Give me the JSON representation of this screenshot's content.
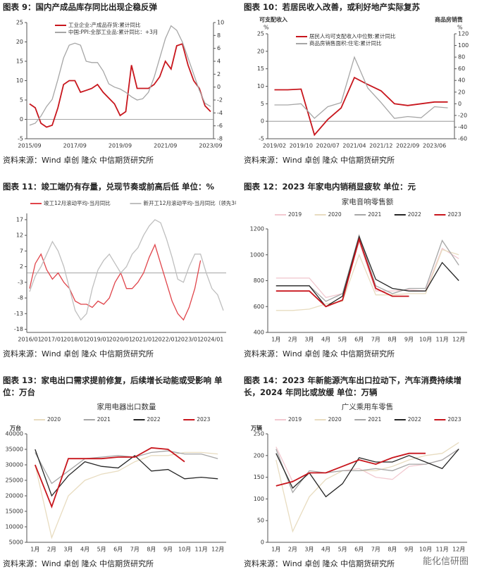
{
  "chart_data": [
    {
      "type": "line",
      "caption": "图表 9：国内产成品库存同比出现企稳反弹",
      "legend": "top-left",
      "categories": [
        "2015/09",
        null,
        null,
        null,
        null,
        null,
        null,
        null,
        "2017/09",
        null,
        null,
        null,
        null,
        null,
        null,
        null,
        "2019/09",
        null,
        null,
        null,
        null,
        null,
        null,
        null,
        "2021/09",
        null,
        null,
        null,
        null,
        null,
        null,
        null,
        "2023/09"
      ],
      "ylim": [
        -5,
        25
      ],
      "yticks": [
        -5,
        0,
        5,
        10,
        15,
        20,
        25
      ],
      "y2lim": [
        -8,
        10
      ],
      "y2ticks": [
        -8,
        -6,
        -4,
        -2,
        0,
        2,
        4,
        6,
        8,
        10
      ],
      "series": [
        {
          "name": "工业企业:产成品存货:累计同比",
          "color": "#c8161d",
          "values": [
            4,
            3,
            -1,
            -2,
            -1.5,
            3,
            9,
            10,
            10,
            7,
            7.5,
            8,
            9,
            7,
            5.5,
            4,
            1,
            2,
            14,
            8,
            8,
            8,
            9,
            11,
            15,
            13,
            19,
            19.5,
            14,
            10,
            8,
            3.5,
            2
          ]
        },
        {
          "name": "中国:PPI:全部工业品:累计同比：+3月",
          "color": "#a6a6a6",
          "axis": "y2",
          "values": [
            -5.9,
            -5.6,
            -4.5,
            -3,
            -1.9,
            1.2,
            4.5,
            6.5,
            6.8,
            6.5,
            4,
            3.8,
            3.8,
            2.5,
            0.5,
            0,
            -0.3,
            -0.8,
            -1.5,
            -2,
            -1.8,
            -0.8,
            1.5,
            4.5,
            7.5,
            9.5,
            8.8,
            7,
            4.5,
            2,
            -0.5,
            -2.5,
            -3
          ]
        }
      ],
      "source": "资料来源：Wind 卓创 隆众 中信期货研究所"
    },
    {
      "type": "line",
      "caption": "图表 10：若居民收入改善，或利好地产实际复苏",
      "legend": "top-left",
      "ylabel": "可支配收入",
      "yunit": "%",
      "y2label": "商品房销售",
      "y2unit": "%",
      "categories": [
        "2019/02",
        null,
        "2019/10",
        null,
        "2020/07",
        null,
        "2021/04",
        null,
        "2021/12",
        null,
        "2022/09",
        null,
        "2023/06",
        null
      ],
      "ylim": [
        -5,
        25
      ],
      "yticks": [
        -5,
        0,
        5,
        10,
        15,
        20,
        25
      ],
      "y2lim": [
        -60,
        120
      ],
      "y2ticks": [
        -60,
        -40,
        -20,
        0,
        20,
        40,
        60,
        80,
        100,
        120
      ],
      "series": [
        {
          "name": "居民人均可支配收入中位数:累计同比",
          "color": "#c8161d",
          "values": [
            9,
            9,
            9.2,
            -3.9,
            0.5,
            3.8,
            12.5,
            10.5,
            8.7,
            5,
            4.5,
            5,
            5.5,
            5.5
          ]
        },
        {
          "name": "商品房销售面积:住宅:累计同比",
          "color": "#a6a6a6",
          "axis": "y2",
          "values": [
            -2,
            -2,
            0,
            -25,
            -5,
            2,
            80,
            27,
            2,
            -25,
            -22,
            -24,
            -5,
            -7
          ]
        }
      ],
      "source": "资料来源：Wind 卓创 隆众 中信期货研究所"
    },
    {
      "type": "line",
      "caption": "图表 11：竣工端仍有存量，兑现节奏或前高后低 单位：%",
      "legend": "top",
      "categories": [
        "2016/01",
        null,
        null,
        null,
        "2017/01",
        null,
        null,
        null,
        "2018/01",
        null,
        null,
        null,
        "2019/01",
        null,
        null,
        null,
        "2020/01",
        null,
        null,
        null,
        "2021/01",
        null,
        null,
        null,
        "2022/01",
        null,
        null,
        null,
        "2023/01",
        null,
        null,
        null,
        "2024/01",
        null,
        null
      ],
      "ylim": [
        -19,
        19
      ],
      "yticks": [
        -18,
        -13,
        -8,
        -3,
        2,
        7,
        12,
        17
      ],
      "series": [
        {
          "name": "竣工12月滚动平均-当月同比",
          "color": "#e0454b",
          "values": [
            -5,
            3,
            6,
            1,
            -2,
            0,
            -3,
            -5,
            -9,
            -10,
            -10,
            -11,
            -9,
            -10,
            -8,
            -3,
            0,
            -5,
            -5,
            -3,
            0,
            5,
            9,
            3,
            -3,
            -9,
            -13,
            -15,
            -11,
            -5,
            4,
            null,
            null,
            null,
            null
          ]
        },
        {
          "name": "新开工12月滚动平均-当月同比（领先3年）",
          "color": "#bfbfbf",
          "values": [
            -6,
            -1,
            2,
            6,
            10,
            7,
            2,
            -5,
            -12,
            -15,
            -13,
            -5,
            1,
            4,
            6,
            3,
            0,
            2,
            6,
            8,
            12,
            15,
            17,
            16,
            11,
            5,
            -2,
            -3,
            2,
            6,
            6,
            0,
            -5,
            -7,
            -12
          ]
        }
      ],
      "source": "资料来源：Wind 卓创 隆众 中信期货研究所"
    },
    {
      "type": "line",
      "caption": "图表 12：2023 年家电内销稍显疲软 单位：元",
      "title": "家电音响零售额",
      "legend": "top",
      "categories": [
        "1月",
        "2月",
        "3月",
        "4月",
        "5月",
        "6月",
        "7月",
        "8月",
        "9月",
        "10月",
        "11月",
        "12月"
      ],
      "ylim": [
        400,
        1200
      ],
      "yticks": [
        400,
        600,
        800,
        1000,
        1200
      ],
      "series": [
        {
          "name": "2019",
          "color": "#f2c9d0",
          "values": [
            820,
            820,
            820,
            670,
            700,
            1100,
            720,
            720,
            730,
            720,
            1050,
            970
          ]
        },
        {
          "name": "2020",
          "color": "#e8dcc0",
          "values": [
            570,
            570,
            580,
            620,
            640,
            1000,
            690,
            690,
            700,
            700,
            1040,
            1000
          ]
        },
        {
          "name": "2021",
          "color": "#a6a6a6",
          "values": [
            760,
            760,
            760,
            640,
            700,
            1150,
            760,
            700,
            740,
            740,
            1110,
            920
          ]
        },
        {
          "name": "2022",
          "color": "#262626",
          "values": [
            760,
            760,
            760,
            600,
            680,
            1140,
            810,
            740,
            720,
            720,
            940,
            800
          ]
        },
        {
          "name": "2023",
          "color": "#c8161d",
          "values": [
            720,
            720,
            720,
            600,
            650,
            1120,
            740,
            680,
            680,
            null,
            null,
            null
          ]
        }
      ],
      "source": "资料来源：Wind 卓创 隆众 中信期货研究所"
    },
    {
      "type": "line",
      "caption": "图表 13：家电出口需求提前修复，后续增长动能或受影响 单位：万台",
      "title": "家用电器出口数量",
      "ylabel": "万台",
      "legend": "top",
      "categories": [
        "1月",
        "2月",
        "3月",
        "4月",
        "5月",
        "6月",
        "7月",
        "8月",
        "9月",
        "10月",
        "11月",
        "12月"
      ],
      "ylim": [
        5000,
        40000
      ],
      "yticks": [
        5000,
        10000,
        15000,
        20000,
        25000,
        30000,
        35000,
        40000
      ],
      "series": [
        {
          "name": "2020",
          "color": "#e8dcc0",
          "values": [
            30000,
            6500,
            20000,
            25000,
            27000,
            28000,
            31000,
            33000,
            33000,
            34000,
            34000,
            33500
          ]
        },
        {
          "name": "2021",
          "color": "#a6a6a6",
          "values": [
            34000,
            24000,
            28000,
            32000,
            32500,
            33000,
            32500,
            34000,
            34500,
            33500,
            33500,
            32000
          ]
        },
        {
          "name": "2022",
          "color": "#262626",
          "values": [
            35000,
            20000,
            26500,
            31000,
            29500,
            29000,
            33000,
            28000,
            28500,
            25500,
            26000,
            25500
          ]
        },
        {
          "name": "2023",
          "color": "#c8161d",
          "values": [
            30000,
            16500,
            32000,
            32000,
            32000,
            32500,
            32500,
            35500,
            35000,
            31000,
            null,
            null
          ]
        }
      ],
      "source": "资料来源：Wind 卓创 隆众 中信期货研究所"
    },
    {
      "type": "line",
      "caption": "图表 14：2023 年新能源汽车出口拉动下，汽车消费持续增长，2024 年同比或放缓 单位：万辆",
      "title": "广义乘用车零售",
      "ylabel": "万辆",
      "legend": "top",
      "categories": [
        "1月",
        "2月",
        "3月",
        "4月",
        "5月",
        "6月",
        "7月",
        "8月",
        "9月",
        "10月",
        "11月",
        "12月"
      ],
      "ylim": [
        0,
        250
      ],
      "yticks": [
        0,
        50,
        100,
        150,
        200,
        250
      ],
      "series": [
        {
          "name": "2019",
          "color": "#f2c9d0",
          "values": [
            220,
            140,
            160,
            160,
            165,
            170,
            150,
            145,
            175,
            180,
            190,
            215
          ]
        },
        {
          "name": "2020",
          "color": "#e8dcc0",
          "values": [
            190,
            25,
            105,
            145,
            165,
            165,
            165,
            175,
            190,
            200,
            205,
            230
          ]
        },
        {
          "name": "2021",
          "color": "#a6a6a6",
          "values": [
            215,
            115,
            165,
            160,
            165,
            165,
            170,
            165,
            180,
            180,
            190,
            215
          ]
        },
        {
          "name": "2022",
          "color": "#262626",
          "values": [
            205,
            125,
            160,
            105,
            135,
            195,
            185,
            185,
            200,
            185,
            170,
            215
          ]
        },
        {
          "name": "2023",
          "color": "#c8161d",
          "values": [
            130,
            140,
            160,
            160,
            175,
            190,
            180,
            195,
            205,
            205,
            null,
            null
          ]
        }
      ],
      "source": "资料来源：Wind 卓创 隆众 中信期货研究所"
    }
  ],
  "watermark": "能化信研圈"
}
